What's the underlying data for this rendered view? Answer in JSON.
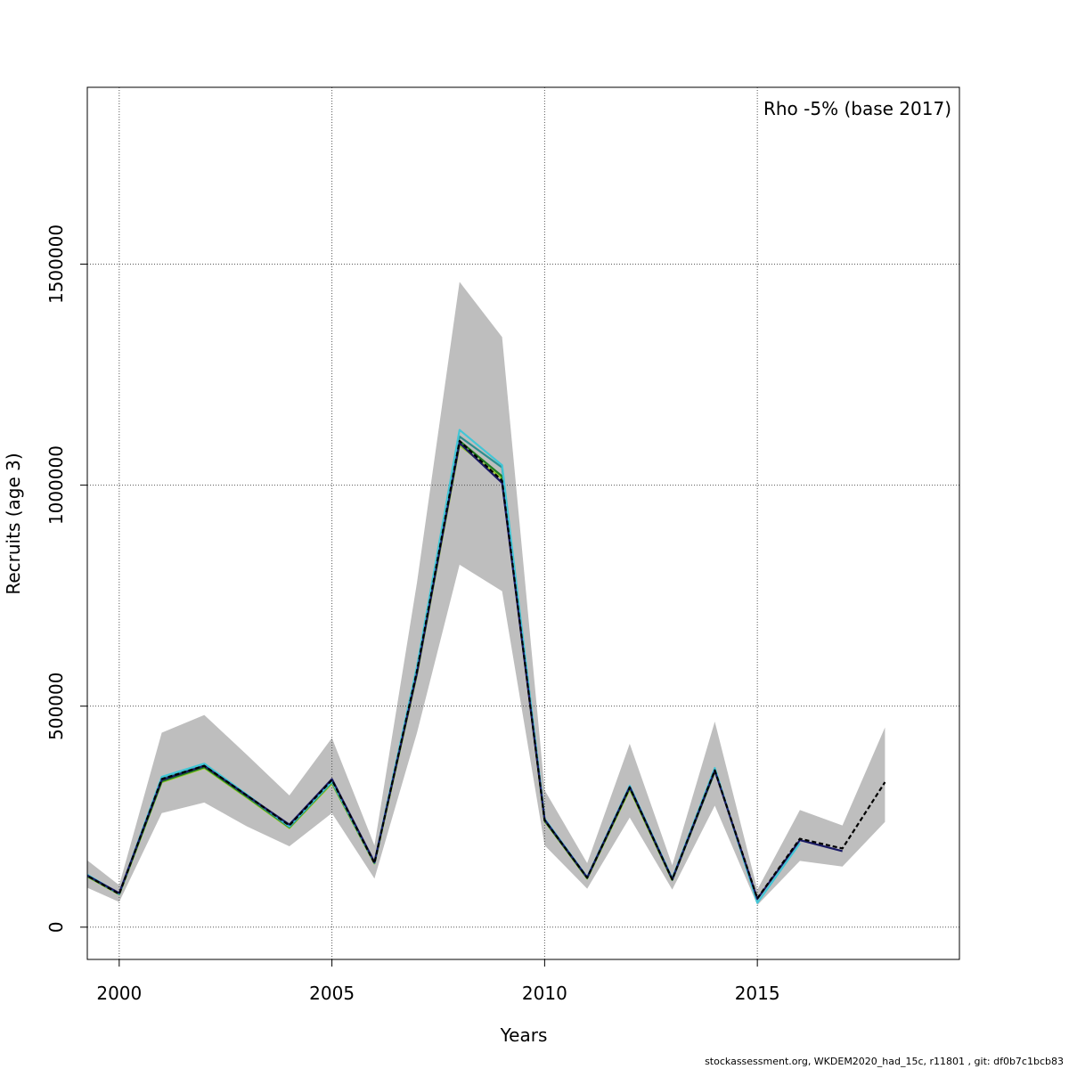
{
  "chart_data": {
    "type": "line",
    "title": "",
    "annotation": "Rho -5% (base 2017)",
    "xlabel": "Years",
    "ylabel": "Recruits (age 3)",
    "xlim": [
      1999.25,
      2019.75
    ],
    "ylim": [
      -73000,
      1900000
    ],
    "x_ticks": [
      2000,
      2005,
      2010,
      2015
    ],
    "y_ticks": [
      0,
      500000,
      1000000,
      1500000
    ],
    "grid": true,
    "confidence_band": {
      "color": "#bebebe",
      "x": [
        1999,
        2000,
        2001,
        2002,
        2003,
        2004,
        2005,
        2006,
        2007,
        2008,
        2009,
        2010,
        2011,
        2012,
        2013,
        2014,
        2015,
        2016,
        2017,
        2018
      ],
      "upper": [
        170000,
        95000,
        440000,
        480000,
        390000,
        298000,
        428000,
        185000,
        780000,
        1460000,
        1335000,
        310000,
        145000,
        415000,
        140000,
        465000,
        85000,
        265000,
        230000,
        452000
      ],
      "lower": [
        100000,
        57000,
        258000,
        282000,
        228000,
        183000,
        258000,
        110000,
        440000,
        820000,
        760000,
        185000,
        87000,
        248000,
        85000,
        275000,
        50000,
        150000,
        137000,
        238000
      ]
    },
    "series": [
      {
        "color": "#000000",
        "dashed": true,
        "x": [
          1999,
          2000,
          2001,
          2002,
          2003,
          2004,
          2005,
          2006,
          2007,
          2008,
          2009,
          2010,
          2011,
          2012,
          2013,
          2014,
          2015,
          2016,
          2017,
          2018
        ],
        "values": [
          130000,
          75000,
          335000,
          365000,
          298000,
          230000,
          333000,
          145000,
          580000,
          1100000,
          1010000,
          242000,
          112000,
          316000,
          108000,
          355000,
          65000,
          200000,
          178000,
          328000
        ]
      },
      {
        "color": "#1a1a66",
        "x": [
          1999,
          2000,
          2001,
          2002,
          2003,
          2004,
          2005,
          2006,
          2007,
          2008,
          2009,
          2010,
          2011,
          2012,
          2013,
          2014,
          2015,
          2016,
          2017
        ],
        "values": [
          130000,
          77000,
          333000,
          365000,
          298000,
          232000,
          335000,
          147000,
          575000,
          1095000,
          1005000,
          243000,
          112000,
          317000,
          108000,
          354000,
          64000,
          197000,
          172000
        ]
      },
      {
        "color": "#42c6d6",
        "x": [
          1999,
          2000,
          2001,
          2002,
          2003,
          2004,
          2005,
          2006,
          2007,
          2008,
          2009,
          2010,
          2011,
          2012,
          2013,
          2014,
          2015,
          2016
        ],
        "values": [
          133000,
          76000,
          340000,
          370000,
          300000,
          228000,
          330000,
          146000,
          590000,
          1125000,
          1045000,
          245000,
          113000,
          320000,
          110000,
          360000,
          55000,
          190000
        ]
      },
      {
        "color": "#2f8f8f",
        "x": [
          1999,
          2000,
          2001,
          2002,
          2003,
          2004,
          2005,
          2006,
          2007,
          2008,
          2009,
          2010,
          2011,
          2012,
          2013,
          2014,
          2015
        ],
        "values": [
          131000,
          75000,
          337000,
          366000,
          297000,
          227000,
          329000,
          146000,
          585000,
          1110000,
          1040000,
          244000,
          112000,
          318000,
          109000,
          357000,
          58000
        ]
      },
      {
        "color": "#1e7a1e",
        "x": [
          1999,
          2000,
          2001,
          2002,
          2003,
          2004,
          2005,
          2006,
          2007,
          2008,
          2009,
          2010,
          2011,
          2012,
          2013,
          2014
        ],
        "values": [
          129000,
          75000,
          330000,
          362000,
          295000,
          226000,
          328000,
          145000,
          578000,
          1100000,
          1020000,
          241000,
          111000,
          315000,
          107000,
          352000
        ]
      },
      {
        "color": "#9acd32",
        "x": [
          1999,
          2000,
          2001,
          2002,
          2003,
          2004,
          2005,
          2006,
          2007,
          2008,
          2009,
          2010,
          2011,
          2012,
          2013
        ],
        "values": [
          128000,
          74000,
          328000,
          360000,
          293000,
          224000,
          325000,
          144000,
          572000,
          1090000,
          1015000,
          240000,
          110000,
          312000,
          106000
        ]
      }
    ]
  },
  "footer": "stockassessment.org, WKDEM2020_had_15c, r11801 , git: df0b7c1bcb83"
}
